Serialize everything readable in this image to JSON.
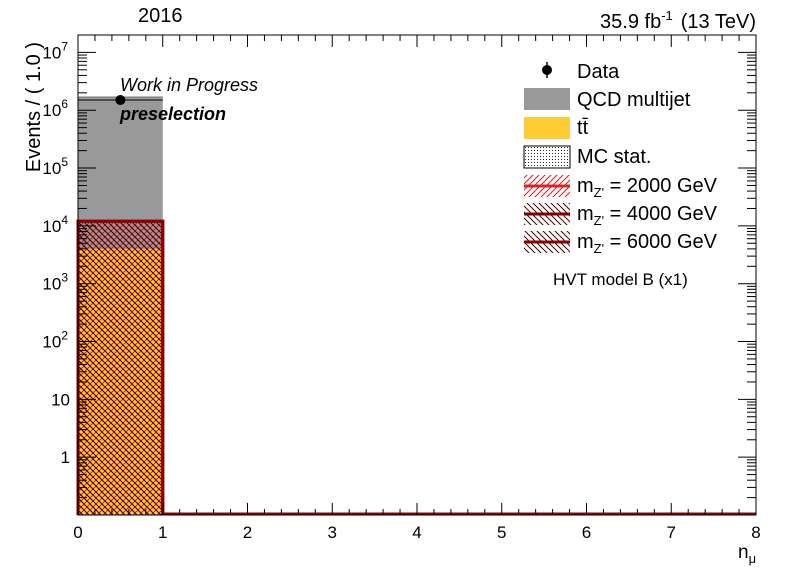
{
  "chart_data": {
    "type": "bar",
    "year_label": "2016",
    "lumi_label": "35.9 fb",
    "lumi_exponent": "-1",
    "energy_label": "(13 TeV)",
    "status_label": "Work in Progress",
    "selection_label": "preselection",
    "xlabel": "n",
    "xlabel_sub": "μ",
    "ylabel": "Events / ( 1.0 )",
    "xlim": [
      0,
      8
    ],
    "ylim": [
      0.1,
      20000000
    ],
    "yscale": "log",
    "bin_edges": [
      0,
      1,
      2,
      3,
      4,
      5,
      6,
      7,
      8
    ],
    "x_ticks": [
      "0",
      "1",
      "2",
      "3",
      "4",
      "5",
      "6",
      "7",
      "8"
    ],
    "y_ticks": [
      {
        "value": 1,
        "label": "1"
      },
      {
        "value": 10,
        "label": "10"
      },
      {
        "value": 100,
        "label": "10",
        "exp": "2"
      },
      {
        "value": 1000,
        "label": "10",
        "exp": "3"
      },
      {
        "value": 10000,
        "label": "10",
        "exp": "4"
      },
      {
        "value": 100000,
        "label": "10",
        "exp": "5"
      },
      {
        "value": 1000000,
        "label": "10",
        "exp": "6"
      },
      {
        "value": 10000000,
        "label": "10",
        "exp": "7"
      }
    ],
    "series": [
      {
        "name": "Data",
        "kind": "points",
        "color": "#000000",
        "values": [
          1500000,
          0,
          0,
          0,
          0,
          0,
          0,
          0
        ]
      },
      {
        "name": "QCD multijet",
        "kind": "stack",
        "color": "#999999",
        "values": [
          1700000,
          0,
          0,
          0,
          0,
          0,
          0,
          0
        ]
      },
      {
        "name": "t",
        "name_suffix": "t̄",
        "kind": "stack",
        "color": "#ffcc33",
        "values": [
          4000,
          0,
          0,
          0,
          0,
          0,
          0,
          0
        ]
      },
      {
        "name": "MC stat.",
        "kind": "band",
        "color": "#555555",
        "values": [
          1700000,
          0,
          0,
          0,
          0,
          0,
          0,
          0
        ]
      },
      {
        "name": "m",
        "name_sub": "Z'",
        "name_suffix": " = 2000 GeV",
        "kind": "signal",
        "color": "#dd2222",
        "values": [
          12000,
          0,
          0,
          0,
          0,
          0,
          0,
          0
        ]
      },
      {
        "name": "m",
        "name_sub": "Z'",
        "name_suffix": " = 4000 GeV",
        "kind": "signal",
        "color": "#7a0000",
        "values": [
          12000,
          0,
          0,
          0,
          0,
          0,
          0,
          0
        ]
      },
      {
        "name": "m",
        "name_sub": "Z'",
        "name_suffix": " = 6000 GeV",
        "kind": "signal",
        "color": "#8b0000",
        "values": [
          12000,
          0,
          0,
          0,
          0,
          0,
          0,
          0
        ]
      }
    ],
    "legend_note": "HVT model B (x1)",
    "legend_position": "top-right",
    "grid": false
  }
}
